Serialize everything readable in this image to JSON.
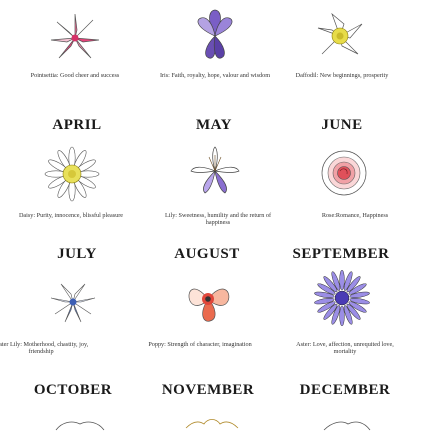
{
  "rows": [
    {
      "captions": [
        "Pointsettia: Good cheer and success",
        "Iris: Faith, royalty, hope, valour and wisdom",
        "Daffodil: New beginnings, prosperity"
      ]
    },
    {
      "months": [
        "APRIL",
        "MAY",
        "JUNE"
      ],
      "captions": [
        "Daisy: Purity, innocence, blissful pleasure",
        "Lily: Sweetness, humility and the return of happiness",
        "Rose:Romance, Happiness"
      ]
    },
    {
      "months": [
        "JULY",
        "AUGUST",
        "SEPTEMBER"
      ],
      "captions": [
        "Water Lily: Motherhood, chastity, joy, friendship",
        "Poppy: Strength of character, imagination",
        "Aster: Love, affection, unrequited love, mortality"
      ]
    },
    {
      "months": [
        "OCTOBER",
        "NOVEMBER",
        "DECEMBER"
      ]
    }
  ],
  "colors": {
    "poinsettia": "#e6447a",
    "iris": "#6a4fb3",
    "daffodil": "#e7dc49",
    "daisy": "#e8e05a",
    "lily": "#8a6fd0",
    "rose": "#e0505a",
    "waterlily": "#5c7fd1",
    "poppy": "#ea6b4f",
    "aster": "#6a5ad6",
    "outline": "#444444"
  }
}
